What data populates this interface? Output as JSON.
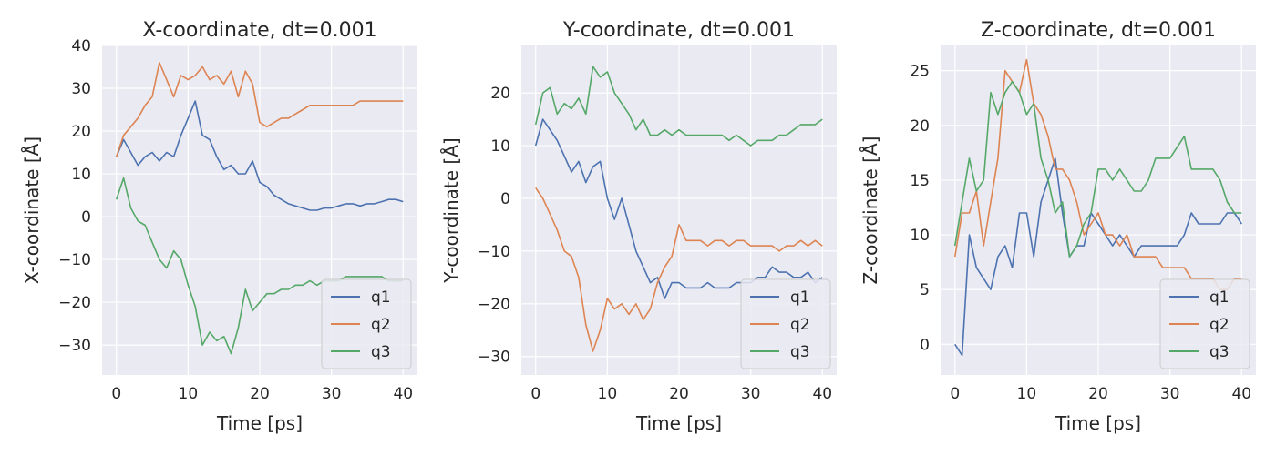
{
  "colors": {
    "q1": "#4c72b0",
    "q2": "#dd8452",
    "q3": "#55a868",
    "axes_bg": "#eaeaf2",
    "grid": "#ffffff"
  },
  "chart_data": [
    {
      "type": "line",
      "title": "X-coordinate, dt=0.001",
      "xlabel": "Time [ps]",
      "ylabel": "X-coordinate [Å]",
      "xlim": [
        -2,
        42
      ],
      "ylim": [
        -37,
        40
      ],
      "xticks": [
        0,
        10,
        20,
        30,
        40
      ],
      "xtick_labels": [
        "0",
        "10",
        "20",
        "30",
        "40"
      ],
      "yticks": [
        40,
        30,
        20,
        10,
        0,
        -10,
        -20,
        -30
      ],
      "ytick_labels": [
        "40",
        "30",
        "20",
        "10",
        "0",
        "−10",
        "−20",
        "−30"
      ],
      "grid": true,
      "legend": "lower-right",
      "series": [
        {
          "name": "q1",
          "x": [
            0,
            1,
            2,
            3,
            4,
            5,
            6,
            7,
            8,
            9,
            10,
            11,
            12,
            13,
            14,
            15,
            16,
            17,
            18,
            19,
            20,
            21,
            22,
            23,
            24,
            25,
            26,
            27,
            28,
            29,
            30,
            31,
            32,
            33,
            34,
            35,
            36,
            37,
            38,
            39,
            40
          ],
          "values": [
            14,
            18,
            15,
            12,
            14,
            15,
            13,
            15,
            14,
            19,
            23,
            27,
            19,
            18,
            14,
            11,
            12,
            10,
            10,
            13,
            8,
            7,
            5,
            4,
            3,
            2.5,
            2,
            1.5,
            1.5,
            2,
            2,
            2.5,
            3,
            3,
            2.5,
            3,
            3,
            3.5,
            4,
            4,
            3.5
          ]
        },
        {
          "name": "q2",
          "x": [
            0,
            1,
            2,
            3,
            4,
            5,
            6,
            7,
            8,
            9,
            10,
            11,
            12,
            13,
            14,
            15,
            16,
            17,
            18,
            19,
            20,
            21,
            22,
            23,
            24,
            25,
            26,
            27,
            28,
            29,
            30,
            31,
            32,
            33,
            34,
            35,
            36,
            37,
            38,
            39,
            40
          ],
          "values": [
            14,
            19,
            21,
            23,
            26,
            28,
            36,
            32,
            28,
            33,
            32,
            33,
            35,
            32,
            33,
            31,
            34,
            28,
            34,
            31,
            22,
            21,
            22,
            23,
            23,
            24,
            25,
            26,
            26,
            26,
            26,
            26,
            26,
            26,
            27,
            27,
            27,
            27,
            27,
            27,
            27
          ]
        },
        {
          "name": "q3",
          "x": [
            0,
            1,
            2,
            3,
            4,
            5,
            6,
            7,
            8,
            9,
            10,
            11,
            12,
            13,
            14,
            15,
            16,
            17,
            18,
            19,
            20,
            21,
            22,
            23,
            24,
            25,
            26,
            27,
            28,
            29,
            30,
            31,
            32,
            33,
            34,
            35,
            36,
            37,
            38,
            39,
            40
          ],
          "values": [
            4,
            9,
            2,
            -1,
            -2,
            -6,
            -10,
            -12,
            -8,
            -10,
            -16,
            -21,
            -30,
            -27,
            -29,
            -28,
            -32,
            -26,
            -17,
            -22,
            -20,
            -18,
            -18,
            -17,
            -17,
            -16,
            -16,
            -15,
            -16,
            -15,
            -15,
            -15,
            -14,
            -14,
            -14,
            -14,
            -14,
            -14,
            -15,
            -15,
            -15
          ]
        }
      ]
    },
    {
      "type": "line",
      "title": "Y-coordinate, dt=0.001",
      "xlabel": "Time [ps]",
      "ylabel": "Y-coordinate [Å]",
      "xlim": [
        -2,
        42
      ],
      "ylim": [
        -33.5,
        29
      ],
      "xticks": [
        0,
        10,
        20,
        30,
        40
      ],
      "xtick_labels": [
        "0",
        "10",
        "20",
        "30",
        "40"
      ],
      "yticks": [
        20,
        10,
        0,
        -10,
        -20,
        -30
      ],
      "ytick_labels": [
        "20",
        "10",
        "0",
        "−10",
        "−20",
        "−30"
      ],
      "grid": true,
      "legend": "lower-right",
      "series": [
        {
          "name": "q1",
          "x": [
            0,
            1,
            2,
            3,
            4,
            5,
            6,
            7,
            8,
            9,
            10,
            11,
            12,
            13,
            14,
            15,
            16,
            17,
            18,
            19,
            20,
            21,
            22,
            23,
            24,
            25,
            26,
            27,
            28,
            29,
            30,
            31,
            32,
            33,
            34,
            35,
            36,
            37,
            38,
            39,
            40
          ],
          "values": [
            10,
            15,
            13,
            11,
            8,
            5,
            7,
            3,
            6,
            7,
            0,
            -4,
            0,
            -5,
            -10,
            -13,
            -16,
            -15,
            -19,
            -16,
            -16,
            -17,
            -17,
            -17,
            -16,
            -17,
            -17,
            -17,
            -16,
            -16,
            -16,
            -15,
            -15,
            -13,
            -14,
            -14,
            -15,
            -15,
            -14,
            -16,
            -15
          ]
        },
        {
          "name": "q2",
          "x": [
            0,
            1,
            2,
            3,
            4,
            5,
            6,
            7,
            8,
            9,
            10,
            11,
            12,
            13,
            14,
            15,
            16,
            17,
            18,
            19,
            20,
            21,
            22,
            23,
            24,
            25,
            26,
            27,
            28,
            29,
            30,
            31,
            32,
            33,
            34,
            35,
            36,
            37,
            38,
            39,
            40
          ],
          "values": [
            2,
            0,
            -3,
            -6,
            -10,
            -11,
            -15,
            -24,
            -29,
            -25,
            -19,
            -21,
            -20,
            -22,
            -20,
            -23,
            -21,
            -16,
            -13,
            -11,
            -5,
            -8,
            -8,
            -8,
            -9,
            -8,
            -8,
            -9,
            -8,
            -8,
            -9,
            -9,
            -9,
            -9,
            -10,
            -9,
            -9,
            -8,
            -9,
            -8,
            -9
          ]
        },
        {
          "name": "q3",
          "x": [
            0,
            1,
            2,
            3,
            4,
            5,
            6,
            7,
            8,
            9,
            10,
            11,
            12,
            13,
            14,
            15,
            16,
            17,
            18,
            19,
            20,
            21,
            22,
            23,
            24,
            25,
            26,
            27,
            28,
            29,
            30,
            31,
            32,
            33,
            34,
            35,
            36,
            37,
            38,
            39,
            40
          ],
          "values": [
            14,
            20,
            21,
            16,
            18,
            17,
            19,
            16,
            25,
            23,
            24,
            20,
            18,
            16,
            13,
            15,
            12,
            12,
            13,
            12,
            13,
            12,
            12,
            12,
            12,
            12,
            12,
            11,
            12,
            11,
            10,
            11,
            11,
            11,
            12,
            12,
            13,
            14,
            14,
            14,
            15
          ]
        }
      ]
    },
    {
      "type": "line",
      "title": "Z-coordinate, dt=0.001",
      "xlabel": "Time [ps]",
      "ylabel": "Z-coordinate [Å]",
      "xlim": [
        -2,
        42
      ],
      "ylim": [
        -2.8,
        27.3
      ],
      "xticks": [
        0,
        10,
        20,
        30,
        40
      ],
      "xtick_labels": [
        "0",
        "10",
        "20",
        "30",
        "40"
      ],
      "yticks": [
        25,
        20,
        15,
        10,
        5,
        0
      ],
      "ytick_labels": [
        "25",
        "20",
        "15",
        "10",
        "5",
        "0"
      ],
      "grid": true,
      "legend": "lower-right",
      "series": [
        {
          "name": "q1",
          "x": [
            0,
            1,
            2,
            3,
            4,
            5,
            6,
            7,
            8,
            9,
            10,
            11,
            12,
            13,
            14,
            15,
            16,
            17,
            18,
            19,
            20,
            21,
            22,
            23,
            24,
            25,
            26,
            27,
            28,
            29,
            30,
            31,
            32,
            33,
            34,
            35,
            36,
            37,
            38,
            39,
            40
          ],
          "values": [
            0,
            -1,
            10,
            7,
            6,
            5,
            8,
            9,
            7,
            12,
            12,
            8,
            13,
            15,
            17,
            12,
            8,
            9,
            9,
            12,
            11,
            10,
            9,
            10,
            9,
            8,
            9,
            9,
            9,
            9,
            9,
            9,
            10,
            12,
            11,
            11,
            11,
            11,
            12,
            12,
            11
          ]
        },
        {
          "name": "q2",
          "x": [
            0,
            1,
            2,
            3,
            4,
            5,
            6,
            7,
            8,
            9,
            10,
            11,
            12,
            13,
            14,
            15,
            16,
            17,
            18,
            19,
            20,
            21,
            22,
            23,
            24,
            25,
            26,
            27,
            28,
            29,
            30,
            31,
            32,
            33,
            34,
            35,
            36,
            37,
            38,
            39,
            40
          ],
          "values": [
            8,
            12,
            12,
            14,
            9,
            13,
            17,
            25,
            24,
            23,
            26,
            22,
            21,
            19,
            16,
            16,
            15,
            13,
            10,
            11,
            12,
            10,
            10,
            9,
            10,
            8,
            8,
            8,
            8,
            7,
            7,
            7,
            7,
            6,
            6,
            6,
            6,
            5,
            5,
            6,
            6
          ]
        },
        {
          "name": "q3",
          "x": [
            0,
            1,
            2,
            3,
            4,
            5,
            6,
            7,
            8,
            9,
            10,
            11,
            12,
            13,
            14,
            15,
            16,
            17,
            18,
            19,
            20,
            21,
            22,
            23,
            24,
            25,
            26,
            27,
            28,
            29,
            30,
            31,
            32,
            33,
            34,
            35,
            36,
            37,
            38,
            39,
            40
          ],
          "values": [
            9,
            13,
            17,
            14,
            15,
            23,
            21,
            23,
            24,
            23,
            21,
            22,
            17,
            15,
            12,
            13,
            8,
            9,
            11,
            12,
            16,
            16,
            15,
            16,
            15,
            14,
            14,
            15,
            17,
            17,
            17,
            18,
            19,
            16,
            16,
            16,
            16,
            15,
            13,
            12,
            12
          ]
        }
      ]
    }
  ]
}
